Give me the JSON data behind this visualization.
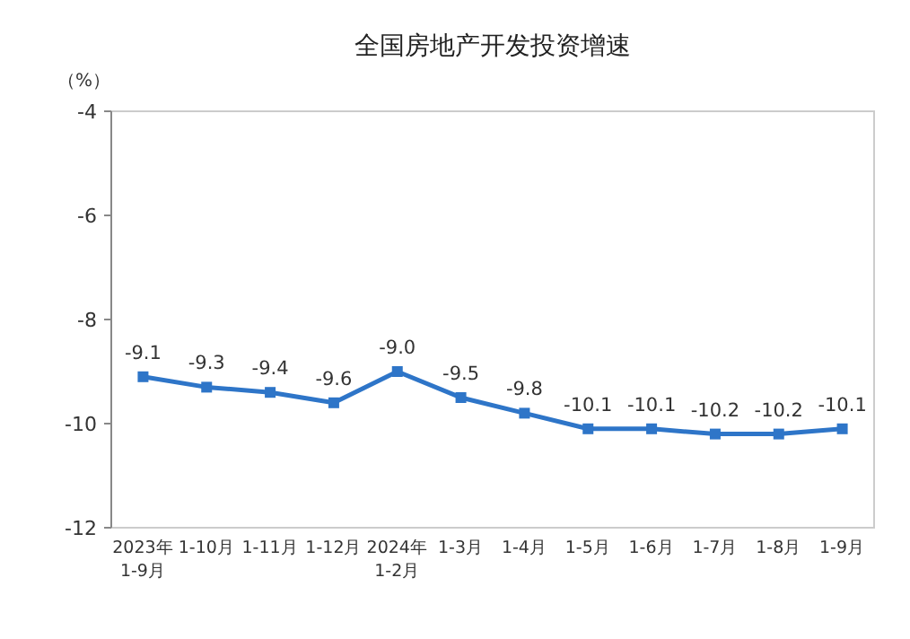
{
  "chart_data": {
    "type": "line",
    "title": "全国房地产开发投资增速",
    "ylabel": "（%）",
    "categories": [
      "2023年\n1-9月",
      "1-10月",
      "1-11月",
      "1-12月",
      "2024年\n1-2月",
      "1-3月",
      "1-4月",
      "1-5月",
      "1-6月",
      "1-7月",
      "1-8月",
      "1-9月"
    ],
    "series": [
      {
        "color": "#2e75c8",
        "values": [
          -9.1,
          -9.3,
          -9.4,
          -9.6,
          -9.0,
          -9.5,
          -9.8,
          -10.1,
          -10.1,
          -10.2,
          -10.2,
          -10.1
        ],
        "value_labels": [
          "-9.1",
          "-9.3",
          "-9.4",
          "-9.6",
          "-9.0",
          "-9.5",
          "-9.8",
          "-10.1",
          "-10.1",
          "-10.2",
          "-10.2",
          "-10.1"
        ]
      }
    ],
    "ylim": [
      -12,
      -4
    ],
    "yticks": [
      -12,
      -10,
      -8,
      -6,
      -4
    ],
    "marker": "square",
    "line_style": "solid"
  }
}
